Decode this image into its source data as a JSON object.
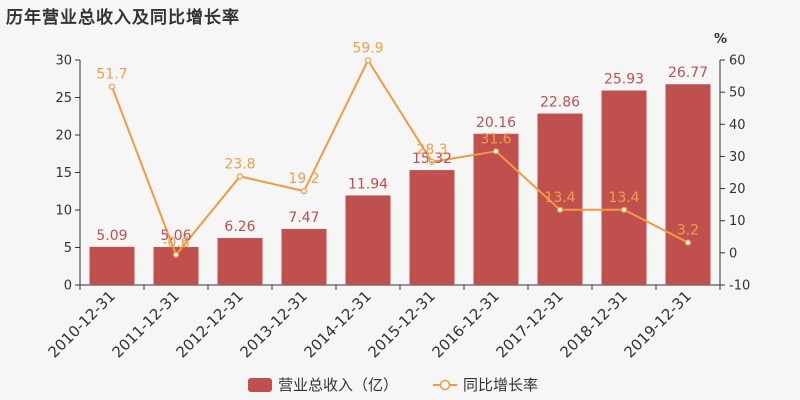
{
  "title": "历年营业总收入及同比增长率",
  "colors": {
    "bar": "#c0504d",
    "line": "#f39a41",
    "axis": "#333333",
    "background": "#f7f6f7"
  },
  "chart_data": {
    "type": "bar",
    "categories": [
      "2010-12-31",
      "2011-12-31",
      "2012-12-31",
      "2013-12-31",
      "2014-12-31",
      "2015-12-31",
      "2016-12-31",
      "2017-12-31",
      "2018-12-31",
      "2019-12-31"
    ],
    "series": [
      {
        "name": "营业总收入（亿）",
        "type": "bar",
        "axis": "left",
        "values": [
          5.09,
          5.06,
          6.26,
          7.47,
          11.94,
          15.32,
          20.16,
          22.86,
          25.93,
          26.77
        ],
        "labels": [
          "5.09",
          "5.06",
          "6.26",
          "7.47",
          "11.94",
          "15.32",
          "20.16",
          "22.86",
          "25.93",
          "26.77"
        ]
      },
      {
        "name": "同比增长率",
        "type": "line",
        "axis": "right",
        "values": [
          51.7,
          -0.6,
          23.8,
          19.2,
          59.9,
          28.3,
          31.6,
          13.4,
          13.4,
          3.2
        ],
        "labels": [
          "51.7",
          "-0.6",
          "23.8",
          "19.2",
          "59.9",
          "28.3",
          "31.6",
          "13.4",
          "13.4",
          "3.2"
        ]
      }
    ],
    "y_left": {
      "lim": [
        0,
        30
      ],
      "ticks": [
        "0",
        "5",
        "10",
        "15",
        "20",
        "25",
        "30"
      ]
    },
    "y_right": {
      "label": "%",
      "lim": [
        -10,
        60
      ],
      "ticks": [
        "-10",
        "0",
        "10",
        "20",
        "30",
        "40",
        "50",
        "60"
      ]
    },
    "legend_position": "bottom",
    "grid": false
  }
}
